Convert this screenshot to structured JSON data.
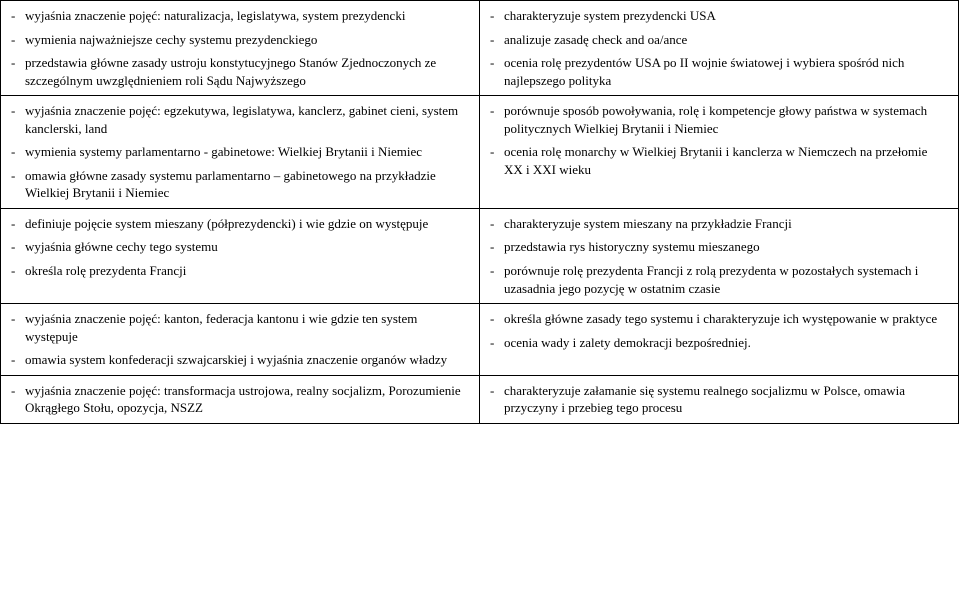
{
  "rows": [
    {
      "left": [
        "wyjaśnia znaczenie pojęć: naturalizacja, legislatywa, system prezydencki",
        "wymienia najważniejsze cechy systemu prezydenckiego",
        "przedstawia główne zasady ustroju konstytucyjnego Stanów Zjednoczonych ze szczególnym uwzględnieniem roli Sądu Najwyższego"
      ],
      "right": [
        "charakteryzuje system prezydencki USA",
        "analizuje zasadę check and oa/ance",
        "ocenia rolę prezydentów USA po II wojnie światowej  i wybiera spośród nich najlepszego polityka"
      ]
    },
    {
      "left": [
        "wyjaśnia znaczenie pojęć: egzekutywa, legislatywa, kanclerz, gabinet cieni, system kanclerski, land",
        "wymienia systemy parlamentarno - gabinetowe: Wielkiej Brytanii i Niemiec",
        "omawia główne zasady systemu parlamentarno – gabinetowego na przykładzie Wielkiej Brytanii i Niemiec"
      ],
      "right": [
        "porównuje sposób powoływania, rolę i kompetencje głowy państwa w systemach politycznych Wielkiej Brytanii i Niemiec",
        "ocenia rolę monarchy w Wielkiej Brytanii i kanclerza w Niemczech na przełomie XX i XXI wieku"
      ]
    },
    {
      "left": [
        "definiuje pojęcie system mieszany (półprezydencki) i wie gdzie on występuje",
        "wyjaśnia główne cechy tego systemu",
        "określa rolę prezydenta Francji"
      ],
      "right": [
        "charakteryzuje system mieszany na przykładzie Francji",
        "przedstawia rys historyczny systemu mieszanego",
        "porównuje rolę prezydenta Francji z rolą prezydenta w pozostałych systemach i uzasadnia jego pozycję w ostatnim czasie"
      ]
    },
    {
      "left": [
        "wyjaśnia znaczenie pojęć: kanton, federacja kantonu i wie gdzie ten system występuje",
        "omawia system konfederacji szwajcarskiej i wyjaśnia znaczenie organów władzy"
      ],
      "right": [
        "określa główne zasady tego systemu i charakteryzuje ich występowanie w praktyce",
        "ocenia wady i zalety demokracji bezpośredniej."
      ]
    },
    {
      "left": [
        "wyjaśnia znaczenie pojęć: transformacja ustrojowa, realny socjalizm, Porozumienie Okrągłego Stołu, opozycja, NSZZ"
      ],
      "right": [
        "charakteryzuje załamanie się systemu realnego socjalizmu w Polsce, omawia przyczyny i przebieg tego procesu"
      ]
    }
  ]
}
